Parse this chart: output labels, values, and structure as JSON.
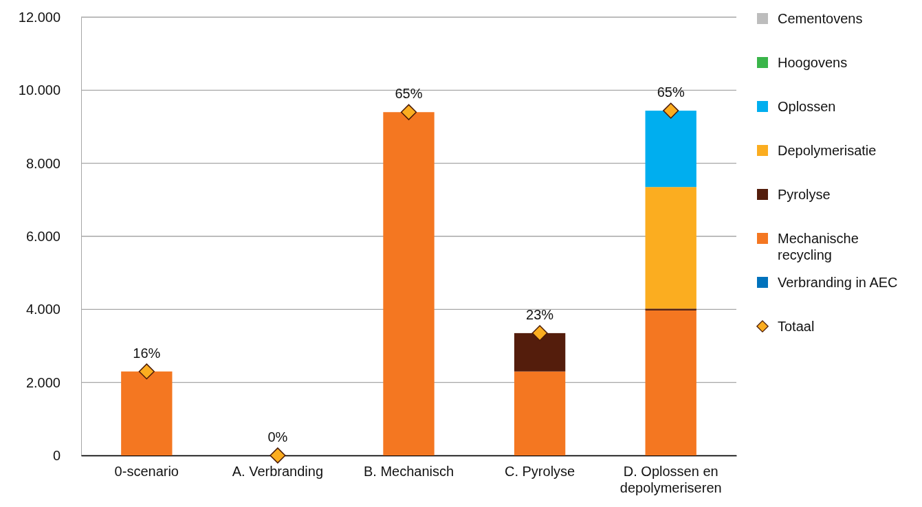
{
  "chart_data": {
    "type": "bar",
    "stacked": true,
    "categories": [
      "0-scenario",
      "A. Verbranding",
      "B. Mechanisch",
      "C. Pyrolyse",
      "D. Oplossen en depolymeriseren"
    ],
    "ylim": [
      0,
      12000
    ],
    "yticks": [
      {
        "value": 0,
        "label": "0"
      },
      {
        "value": 2000,
        "label": "2.000"
      },
      {
        "value": 4000,
        "label": "4.000"
      },
      {
        "value": 6000,
        "label": "6.000"
      },
      {
        "value": 8000,
        "label": "8.000"
      },
      {
        "value": 10000,
        "label": "10.000"
      },
      {
        "value": 12000,
        "label": "12.000"
      }
    ],
    "grid": "y",
    "legend": "right",
    "series": [
      {
        "name": "Verbranding in AEC",
        "color": "#0072bc",
        "values": [
          0,
          0,
          0,
          0,
          0
        ]
      },
      {
        "name": "Mechanische recycling",
        "color": "#f47721",
        "values": [
          2300,
          0,
          9400,
          2300,
          3970
        ]
      },
      {
        "name": "Pyrolyse",
        "color": "#541d0c",
        "values": [
          0,
          0,
          0,
          1050,
          50
        ]
      },
      {
        "name": "Depolymerisatie",
        "color": "#fbad20",
        "values": [
          0,
          0,
          0,
          0,
          3330
        ]
      },
      {
        "name": "Oplossen",
        "color": "#00aeef",
        "values": [
          0,
          0,
          0,
          0,
          2090
        ]
      },
      {
        "name": "Hoogovens",
        "color": "#3ab54a",
        "values": [
          0,
          0,
          0,
          0,
          0
        ]
      },
      {
        "name": "Cementovens",
        "color": "#bdbdbd",
        "values": [
          0,
          0,
          0,
          0,
          0
        ]
      },
      {
        "name": "Totaal",
        "type": "scatter",
        "marker": "diamond",
        "color": "#fbad20",
        "x": [
          "0-scenario",
          "A. Verbranding",
          "B. Mechanisch",
          "C. Pyrolyse",
          "D. Oplossen en depolymeriseren"
        ],
        "values": [
          2300,
          0,
          9400,
          3350,
          9440
        ]
      }
    ],
    "annotations": [
      {
        "text": "16%",
        "x": "0-scenario",
        "y": 2300
      },
      {
        "text": "0%",
        "x": "A. Verbranding",
        "y": 0
      },
      {
        "text": "65%",
        "x": "B. Mechanisch",
        "y": 9400
      },
      {
        "text": "23%",
        "x": "C. Pyrolyse",
        "y": 3350
      },
      {
        "text": "65%",
        "x": "D. Oplossen en depolymeriseren",
        "y": 9440
      }
    ]
  }
}
